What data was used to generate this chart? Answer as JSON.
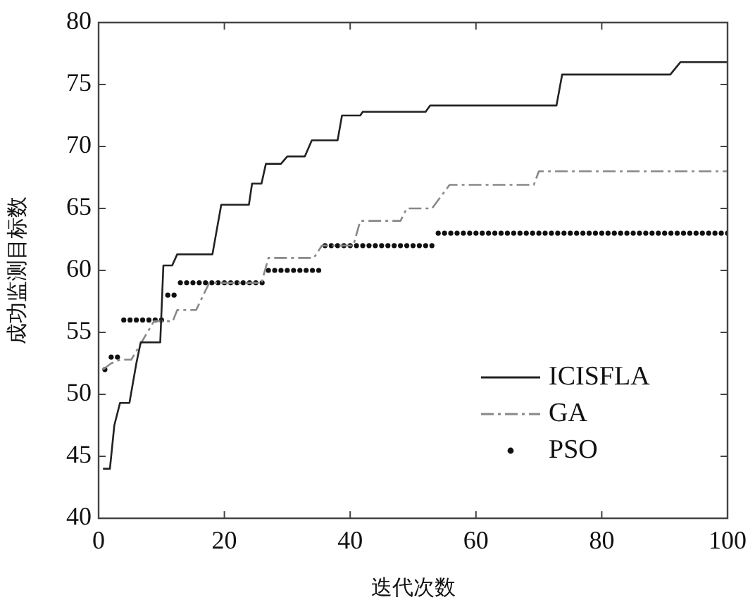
{
  "chart_data": {
    "type": "line",
    "xlabel": "迭代次数",
    "ylabel": "成功监测目标数",
    "xlim": [
      0,
      100
    ],
    "xticks": [
      0,
      20,
      40,
      60,
      80,
      100
    ],
    "ylim": [
      40,
      80
    ],
    "yticks": [
      40,
      45,
      50,
      55,
      60,
      65,
      70,
      75,
      80
    ],
    "grid": false,
    "legend": "bottom right",
    "series": [
      {
        "name": "ICISFLA",
        "color": "#222222",
        "line_style": "solid",
        "marker": "none",
        "x": [
          0.7,
          1.8,
          2.5,
          3.4,
          4.9,
          6,
          6.7,
          9.8,
          10.3,
          11.7,
          12.5,
          18.1,
          19.5,
          23.9,
          24.4,
          25.9,
          26.6,
          29,
          30,
          32.8,
          33.9,
          38,
          38.7,
          41.6,
          42,
          52,
          52.7,
          72.8,
          73.7,
          90.9,
          92.5,
          100
        ],
        "values": [
          44,
          44,
          47.5,
          49.3,
          49.3,
          52.5,
          54.2,
          54.2,
          60.4,
          60.4,
          61.3,
          61.3,
          65.3,
          65.3,
          67,
          67,
          68.6,
          68.6,
          69.2,
          69.2,
          70.5,
          70.5,
          72.5,
          72.5,
          72.8,
          72.8,
          73.3,
          73.3,
          75.8,
          75.8,
          76.8,
          76.8
        ]
      },
      {
        "name": "GA",
        "color": "#888888",
        "line_style": "dashed",
        "marker": "none",
        "x": [
          0.7,
          2,
          3.5,
          5.2,
          8.8,
          11.8,
          12.5,
          15.5,
          17.6,
          25.9,
          27,
          34.2,
          35.5,
          40.5,
          41.6,
          48,
          49,
          53,
          55.8,
          69.2,
          70,
          100
        ],
        "values": [
          52,
          52.5,
          52.8,
          52.8,
          55.9,
          55.9,
          56.8,
          56.8,
          59,
          59,
          61,
          61,
          62,
          62,
          64,
          64,
          65,
          65,
          66.9,
          66.9,
          68,
          68
        ]
      },
      {
        "name": "PSO",
        "type": "scatter",
        "color": "#111111",
        "marker": "circle",
        "x": [
          1,
          2,
          3,
          4,
          5,
          6,
          7,
          8,
          9,
          10,
          11,
          12,
          13,
          14,
          15,
          16,
          17,
          18,
          19,
          20,
          21,
          22,
          23,
          24,
          25,
          26,
          27,
          28,
          29,
          30,
          31,
          32,
          33,
          34,
          35,
          36,
          37,
          38,
          39,
          40,
          41,
          42,
          43,
          44,
          45,
          46,
          47,
          48,
          49,
          50,
          51,
          52,
          53,
          54,
          55,
          56,
          57,
          58,
          59,
          60,
          61,
          62,
          63,
          64,
          65,
          66,
          67,
          68,
          69,
          70,
          71,
          72,
          73,
          74,
          75,
          76,
          77,
          78,
          79,
          80,
          81,
          82,
          83,
          84,
          85,
          86,
          87,
          88,
          89,
          90,
          91,
          92,
          93,
          94,
          95,
          96,
          97,
          98,
          99,
          100
        ],
        "values": [
          52,
          53,
          53,
          56,
          56,
          56,
          56,
          56,
          56,
          56,
          58,
          58,
          59,
          59,
          59,
          59,
          59,
          59,
          59,
          59,
          59,
          59,
          59,
          59,
          59,
          59,
          60,
          60,
          60,
          60,
          60,
          60,
          60,
          60,
          60,
          62,
          62,
          62,
          62,
          62,
          62,
          62,
          62,
          62,
          62,
          62,
          62,
          62,
          62,
          62,
          62,
          62,
          62,
          63,
          63,
          63,
          63,
          63,
          63,
          63,
          63,
          63,
          63,
          63,
          63,
          63,
          63,
          63,
          63,
          63,
          63,
          63,
          63,
          63,
          63,
          63,
          63,
          63,
          63,
          63,
          63,
          63,
          63,
          63,
          63,
          63,
          63,
          63,
          63,
          63,
          63,
          63,
          63,
          63,
          63,
          63,
          63,
          63,
          63,
          63
        ]
      }
    ]
  }
}
